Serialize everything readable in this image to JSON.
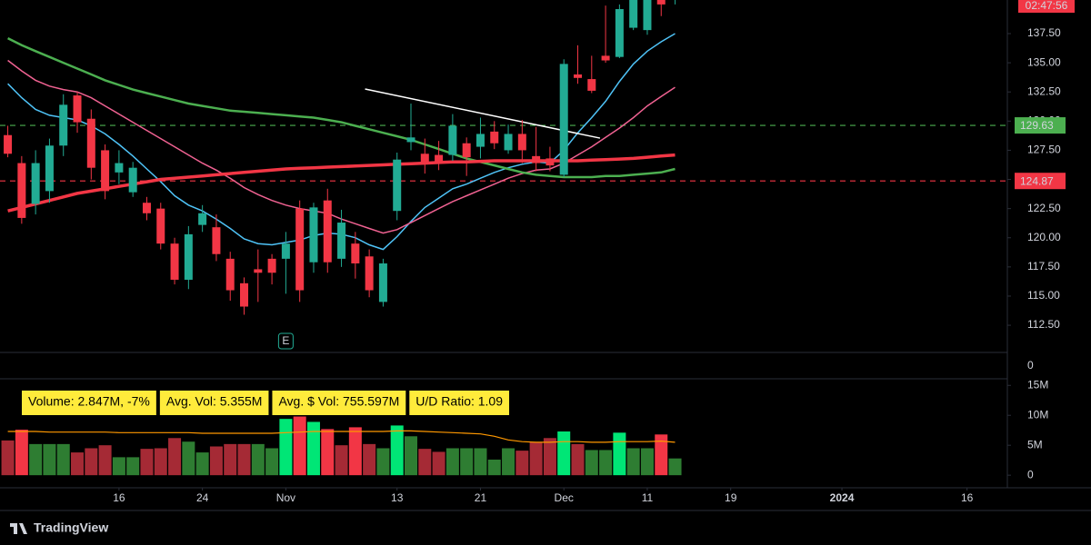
{
  "chart_data": {
    "type": "candlestick",
    "up_color": "#22ab94",
    "down_color": "#f23645",
    "open": [
      128.8,
      126.4,
      122.9,
      124.0,
      127.9,
      132.2,
      130.2,
      127.5,
      125.6,
      123.9,
      123.0,
      122.5,
      119.5,
      116.4,
      121.1,
      120.9,
      118.2,
      116.1,
      117.3,
      118.2,
      118.2,
      122.5,
      117.9,
      123.2,
      118.2,
      119.5,
      118.4,
      114.5,
      122.3,
      128.2,
      127.2,
      127.1,
      127.1,
      128.1,
      127.8,
      129.1,
      127.5,
      128.9,
      127.0,
      126.8,
      125.4,
      134.0,
      133.6,
      135.6,
      135.5,
      138.0,
      137.8,
      141.2,
      140.5
    ],
    "high": [
      129.6,
      127.0,
      127.5,
      128.5,
      132.3,
      132.5,
      131.0,
      128.0,
      127.5,
      126.5,
      123.5,
      123.0,
      120.0,
      121.0,
      122.8,
      122.0,
      118.8,
      116.6,
      119.0,
      118.6,
      120.5,
      123.2,
      123.0,
      124.2,
      122.4,
      120.5,
      119.0,
      118.2,
      127.3,
      131.5,
      128.5,
      128.3,
      130.6,
      128.6,
      130.3,
      130.0,
      129.7,
      130.1,
      129.5,
      127.8,
      135.3,
      136.5,
      135.6,
      139.9,
      140.0,
      141.0,
      141.5,
      142.0,
      142.0
    ],
    "low": [
      126.9,
      121.2,
      122.0,
      123.0,
      127.0,
      129.0,
      125.0,
      123.3,
      124.6,
      123.5,
      121.5,
      119.0,
      116.0,
      115.6,
      120.5,
      118.0,
      114.6,
      113.4,
      114.5,
      116.0,
      115.2,
      114.5,
      117.0,
      117.0,
      117.5,
      116.5,
      114.9,
      114.1,
      121.5,
      127.5,
      125.5,
      125.8,
      126.6,
      125.3,
      126.8,
      127.6,
      127.2,
      126.4,
      125.7,
      125.7,
      125.2,
      133.2,
      132.4,
      135.0,
      135.4,
      137.8,
      137.4,
      139.0,
      140.0
    ],
    "close": [
      127.2,
      121.7,
      126.4,
      127.9,
      131.4,
      129.9,
      126.0,
      124.0,
      126.4,
      126.0,
      122.1,
      119.5,
      116.4,
      120.3,
      122.1,
      118.6,
      115.5,
      114.1,
      117.0,
      117.0,
      119.5,
      115.5,
      122.6,
      117.9,
      121.3,
      117.8,
      115.5,
      117.8,
      126.7,
      128.6,
      126.3,
      126.4,
      129.6,
      126.9,
      128.9,
      128.1,
      128.9,
      127.5,
      126.4,
      126.2,
      134.9,
      133.7,
      132.6,
      135.2,
      139.6,
      140.5,
      141.0,
      140.0,
      141.5
    ],
    "ylim": [
      110.17,
      140.38
    ],
    "yticks": [
      {
        "value": 137.5,
        "label": "137.50"
      },
      {
        "value": 135,
        "label": "135.00"
      },
      {
        "value": 132.5,
        "label": "132.50"
      },
      {
        "value": 130,
        "label": "130.00"
      },
      {
        "value": 127.5,
        "label": "127.50"
      },
      {
        "value": 125,
        "label": "125.00"
      },
      {
        "value": 122.5,
        "label": "122.50"
      },
      {
        "value": 120,
        "label": "120.00"
      },
      {
        "value": 117.5,
        "label": "117.50"
      },
      {
        "value": 115,
        "label": "115.00"
      },
      {
        "value": 112.5,
        "label": "112.50"
      }
    ],
    "xlim": [
      -0.56,
      71.9
    ],
    "xticks": [
      {
        "value": 8,
        "label": "16"
      },
      {
        "value": 14,
        "label": "24"
      },
      {
        "value": 20,
        "label": "Nov"
      },
      {
        "value": 28,
        "label": "13"
      },
      {
        "value": 34,
        "label": "21"
      },
      {
        "value": 40,
        "label": "Dec"
      },
      {
        "value": 46,
        "label": "11"
      },
      {
        "value": 52,
        "label": "19"
      },
      {
        "value": 60,
        "label": "2024"
      },
      {
        "value": 69,
        "label": "16"
      }
    ],
    "moving_averages": [
      {
        "color": "#4fc3f7",
        "values": [
          133.2,
          132.0,
          131.0,
          130.5,
          130.3,
          130.1,
          129.6,
          128.9,
          128.0,
          127.0,
          125.9,
          124.8,
          123.6,
          122.8,
          122.3,
          121.6,
          120.8,
          119.9,
          119.5,
          119.4,
          119.6,
          119.8,
          120.2,
          120.4,
          120.3,
          120.0,
          119.4,
          119.0,
          120.1,
          121.4,
          122.6,
          123.4,
          124.2,
          124.6,
          125.1,
          125.6,
          126.0,
          126.3,
          126.5,
          126.4,
          127.5,
          129.0,
          130.3,
          131.7,
          133.4,
          134.9,
          136.0,
          136.8,
          137.5
        ]
      },
      {
        "color": "#f06292",
        "values": [
          135.2,
          134.3,
          133.5,
          133.0,
          132.7,
          132.5,
          132.0,
          131.3,
          130.6,
          129.9,
          129.2,
          128.5,
          127.8,
          127.1,
          126.4,
          125.8,
          125.1,
          124.3,
          123.7,
          123.2,
          122.8,
          122.5,
          122.3,
          122.1,
          121.6,
          121.2,
          120.8,
          120.4,
          120.7,
          121.3,
          121.9,
          122.5,
          123.1,
          123.6,
          124.1,
          124.6,
          125.1,
          125.5,
          125.8,
          125.9,
          126.4,
          127.1,
          127.8,
          128.6,
          129.4,
          130.3,
          131.3,
          132.1,
          132.9
        ]
      },
      {
        "color": "#4caf50",
        "values": [
          137.1,
          136.5,
          136.0,
          135.5,
          135.0,
          134.5,
          134.0,
          133.5,
          133.1,
          132.7,
          132.4,
          132.1,
          131.8,
          131.5,
          131.3,
          131.1,
          130.9,
          130.8,
          130.7,
          130.6,
          130.5,
          130.4,
          130.3,
          130.1,
          129.9,
          129.6,
          129.3,
          129.0,
          128.7,
          128.4,
          128.0,
          127.6,
          127.2,
          126.8,
          126.5,
          126.2,
          125.9,
          125.6,
          125.4,
          125.3,
          125.2,
          125.2,
          125.2,
          125.3,
          125.3,
          125.4,
          125.5,
          125.6,
          125.9
        ]
      },
      {
        "color": "#f23645",
        "values": [
          122.3,
          122.6,
          122.9,
          123.2,
          123.5,
          123.8,
          124.0,
          124.2,
          124.4,
          124.6,
          124.8,
          125.0,
          125.1,
          125.2,
          125.3,
          125.4,
          125.5,
          125.6,
          125.7,
          125.8,
          125.9,
          125.95,
          126.0,
          126.05,
          126.1,
          126.15,
          126.2,
          126.25,
          126.3,
          126.35,
          126.4,
          126.45,
          126.5,
          126.5,
          126.55,
          126.6,
          126.6,
          126.6,
          126.6,
          126.6,
          126.6,
          126.6,
          126.65,
          126.7,
          126.75,
          126.8,
          126.9,
          127.0,
          127.1
        ]
      }
    ],
    "price_lines": [
      {
        "value": 129.63,
        "color": "#4caf50"
      },
      {
        "value": 124.87,
        "color": "#f23645"
      }
    ],
    "trendline": {
      "x": [
        25.7,
        42.6
      ],
      "y": [
        132.75,
        128.54
      ],
      "color": "#ffffff"
    },
    "countdown": "02:47:56",
    "earnings_marker": {
      "x": 20,
      "label": "E"
    },
    "separator_ticks": [
      0
    ],
    "stats": [
      "Volume: 2.847M, -7%",
      "Avg. Vol: 5.355M",
      "Avg. $ Vol: 755.597M",
      "U/D Ratio: 1.09"
    ],
    "volume": {
      "values": [
        5.8,
        7.6,
        5.2,
        5.2,
        5.2,
        3.8,
        4.5,
        5.0,
        3.0,
        3.0,
        4.4,
        4.5,
        6.2,
        5.6,
        3.8,
        4.8,
        5.2,
        5.2,
        5.2,
        4.5,
        9.4,
        9.8,
        8.9,
        7.7,
        5.0,
        8.0,
        5.2,
        4.5,
        8.3,
        6.5,
        4.4,
        3.9,
        4.5,
        4.5,
        4.5,
        2.6,
        4.5,
        4.1,
        5.5,
        6.2,
        7.3,
        5.2,
        4.2,
        4.2,
        7.1,
        4.5,
        4.5,
        6.8,
        2.8
      ],
      "colors": [
        "#a52a35",
        "#f23645",
        "#2e7d32",
        "#2e7d32",
        "#2e7d32",
        "#a52a35",
        "#a52a35",
        "#a52a35",
        "#2e7d32",
        "#2e7d32",
        "#a52a35",
        "#a52a35",
        "#a52a35",
        "#2e7d32",
        "#2e7d32",
        "#a52a35",
        "#a52a35",
        "#a52a35",
        "#2e7d32",
        "#2e7d32",
        "#00e676",
        "#f23645",
        "#00e676",
        "#f23645",
        "#a52a35",
        "#f23645",
        "#a52a35",
        "#2e7d32",
        "#00e676",
        "#2e7d32",
        "#a52a35",
        "#a52a35",
        "#2e7d32",
        "#2e7d32",
        "#2e7d32",
        "#2e7d32",
        "#2e7d32",
        "#a52a35",
        "#a52a35",
        "#a52a35",
        "#00e676",
        "#a52a35",
        "#2e7d32",
        "#2e7d32",
        "#00e676",
        "#2e7d32",
        "#2e7d32",
        "#f23645",
        "#2e7d32"
      ],
      "avg_color": "#ff9800",
      "avg_values": [
        7.3,
        7.3,
        7.3,
        7.2,
        7.2,
        7.2,
        7.2,
        7.2,
        7.1,
        7.1,
        7.1,
        7.1,
        7.1,
        7.1,
        7.0,
        7.0,
        7.0,
        7.0,
        7.0,
        7.0,
        7.1,
        7.2,
        7.3,
        7.3,
        7.3,
        7.3,
        7.3,
        7.3,
        7.4,
        7.4,
        7.3,
        7.2,
        7.1,
        7.0,
        6.9,
        6.5,
        5.9,
        5.6,
        5.5,
        5.5,
        5.6,
        5.6,
        5.5,
        5.5,
        5.6,
        5.6,
        5.6,
        5.7,
        5.5
      ],
      "ylim": [
        -2.1,
        16.1
      ],
      "yticks": [
        0,
        {
          "value": 5,
          "label": "5M"
        },
        {
          "value": 10,
          "label": "10M"
        },
        {
          "value": 15,
          "label": "15M"
        }
      ]
    },
    "logo": "TradingView"
  }
}
